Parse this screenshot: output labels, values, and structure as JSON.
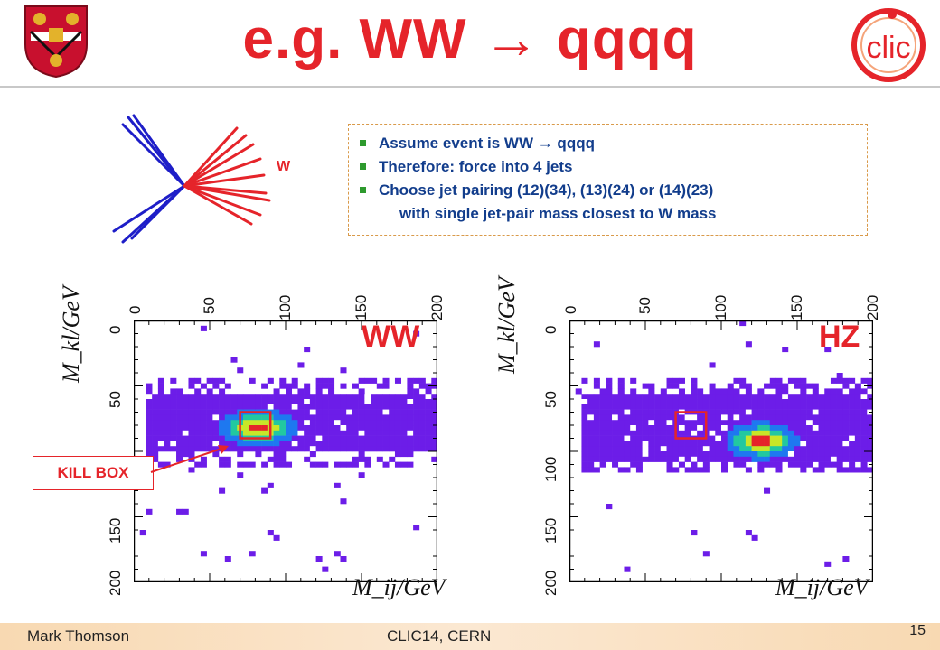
{
  "slide": {
    "title": "e.g. WW → qqqq",
    "w_label": "W",
    "bullets": [
      "Assume event is WW → qqqq",
      "Therefore: force into 4 jets",
      "Choose jet pairing (12)(34), (13)(24) or (14)(23)"
    ],
    "bullet_continuation": "with single jet-pair mass closest to W mass",
    "kill_box_label": "KILL BOX",
    "footer_author": "Mark Thomson",
    "footer_event": "CLIC14, CERN",
    "page_number": "15",
    "logo_text": "clic"
  },
  "chart_data": [
    {
      "type": "heatmap",
      "title": "WW",
      "xlabel": "M_ij/GeV",
      "ylabel": "M_kl/GeV",
      "xlim": [
        0,
        200
      ],
      "ylim": [
        0,
        200
      ],
      "ticks": [
        "0",
        "50",
        "100",
        "150",
        "200"
      ],
      "peak": [
        80,
        80
      ],
      "band_y_range": [
        55,
        100
      ],
      "box": {
        "x": [
          70,
          90
        ],
        "y": [
          70,
          90
        ]
      }
    },
    {
      "type": "heatmap",
      "title": "HZ",
      "xlabel": "M_ij/GeV",
      "ylabel": "M_kl/GeV",
      "xlim": [
        0,
        200
      ],
      "ylim": [
        0,
        200
      ],
      "ticks": [
        "0",
        "50",
        "100",
        "150",
        "200"
      ],
      "peak": [
        125,
        90
      ],
      "band_y_range": [
        55,
        105
      ],
      "box": {
        "x": [
          70,
          90
        ],
        "y": [
          70,
          90
        ]
      }
    }
  ],
  "colors": {
    "title": "#e5242a",
    "text": "#123d8c",
    "band": "#6c1de8",
    "box": "#e5242a"
  }
}
